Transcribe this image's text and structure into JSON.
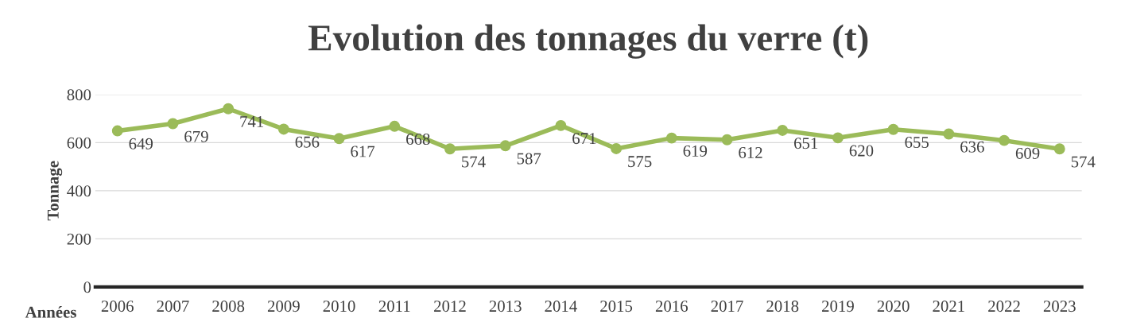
{
  "chart_data": {
    "type": "line",
    "title": "Evolution des tonnages du verre (t)",
    "xlabel": "Années",
    "ylabel": "Tonnage",
    "categories": [
      "2006",
      "2007",
      "2008",
      "2009",
      "2010",
      "2011",
      "2012",
      "2013",
      "2014",
      "2015",
      "2016",
      "2017",
      "2018",
      "2019",
      "2020",
      "2021",
      "2022",
      "2023"
    ],
    "series": [
      {
        "color": "#9bbb59",
        "values": [
          649,
          679,
          741,
          656,
          617,
          668,
          574,
          587,
          671,
          575,
          619,
          612,
          651,
          620,
          655,
          636,
          609,
          574
        ]
      }
    ],
    "ylim": [
      0,
      800
    ],
    "yticks": [
      0,
      200,
      400,
      600,
      800
    ],
    "grid": "y",
    "marker": "circle",
    "line_style": "solid",
    "data_labels": true
  }
}
